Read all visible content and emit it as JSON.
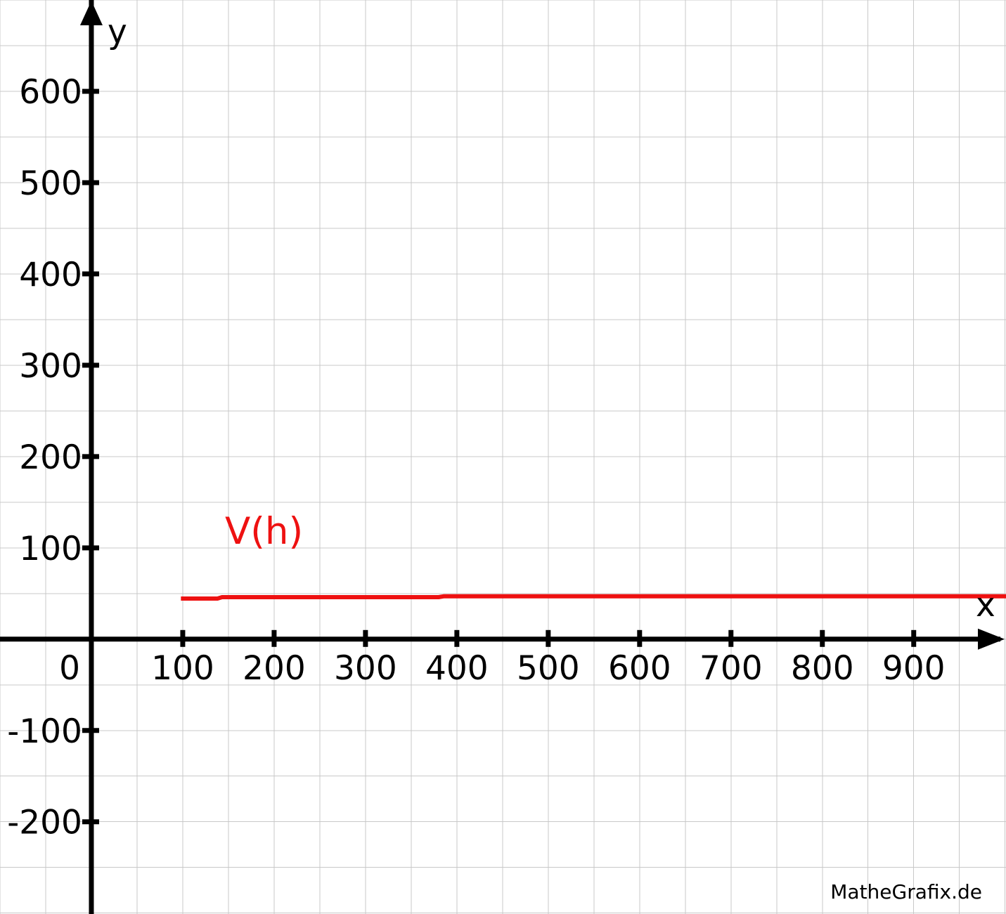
{
  "app": {
    "watermark": "MatheGrafix.de"
  },
  "chart_data": {
    "type": "line",
    "title": "",
    "xlabel": "x",
    "ylabel": "y",
    "origin_label": "0",
    "xlim": [
      -100,
      1001
    ],
    "ylim": [
      -301,
      700
    ],
    "grid": true,
    "grid_step": 50,
    "x_ticks": [
      100,
      200,
      300,
      400,
      500,
      600,
      700,
      800,
      900
    ],
    "y_ticks": [
      600,
      500,
      400,
      300,
      200,
      100,
      -100,
      -200
    ],
    "axis_color": "#000000",
    "grid_color": "#c8c8c8",
    "background_color": "#ffffff",
    "series": [
      {
        "name": "V(h)",
        "label": "V(h)",
        "color": "#ee1111",
        "points": [
          [
            98,
            44.5
          ],
          [
            138,
            44.5
          ],
          [
            143,
            46.0
          ],
          [
            380,
            46.0
          ],
          [
            386,
            47.0
          ],
          [
            1001,
            47.0
          ]
        ]
      }
    ]
  }
}
